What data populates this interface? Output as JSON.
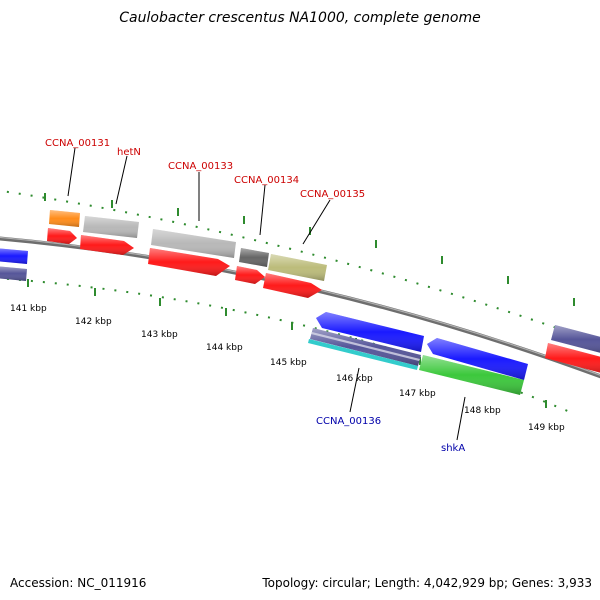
{
  "title": "Caulobacter crescentus NA1000, complete genome",
  "footer": {
    "accession": "Accession: NC_011916",
    "summary": "Topology: circular; Length: 4,042,929 bp; Genes: 3,933"
  },
  "colors": {
    "backbone": "#808080",
    "tick_green": "#2e8b2e",
    "red_gene_label": "#cc0000",
    "blue_gene_label": "#0000aa",
    "cds_red": "#ff1a1a",
    "gene_blue": "#1a1aff",
    "gene_slate": "#555599",
    "gene_green": "#3cc83c",
    "gene_orange": "#ff8c1a",
    "gene_lightgray": "#b8b8b8",
    "gene_darkgray": "#666666",
    "gene_olive": "#bcbc7a",
    "gene_cyan": "#33cccc"
  },
  "scale_labels": [
    "141 kbp",
    "142 kbp",
    "143 kbp",
    "144 kbp",
    "145 kbp",
    "146 kbp",
    "147 kbp",
    "148 kbp",
    "149 kbp"
  ],
  "gene_labels_top": [
    "CCNA_00131",
    "hetN",
    "CCNA_00133",
    "CCNA_00134",
    "CCNA_00135"
  ],
  "gene_labels_bottom": [
    "CCNA_00136",
    "shkA"
  ]
}
